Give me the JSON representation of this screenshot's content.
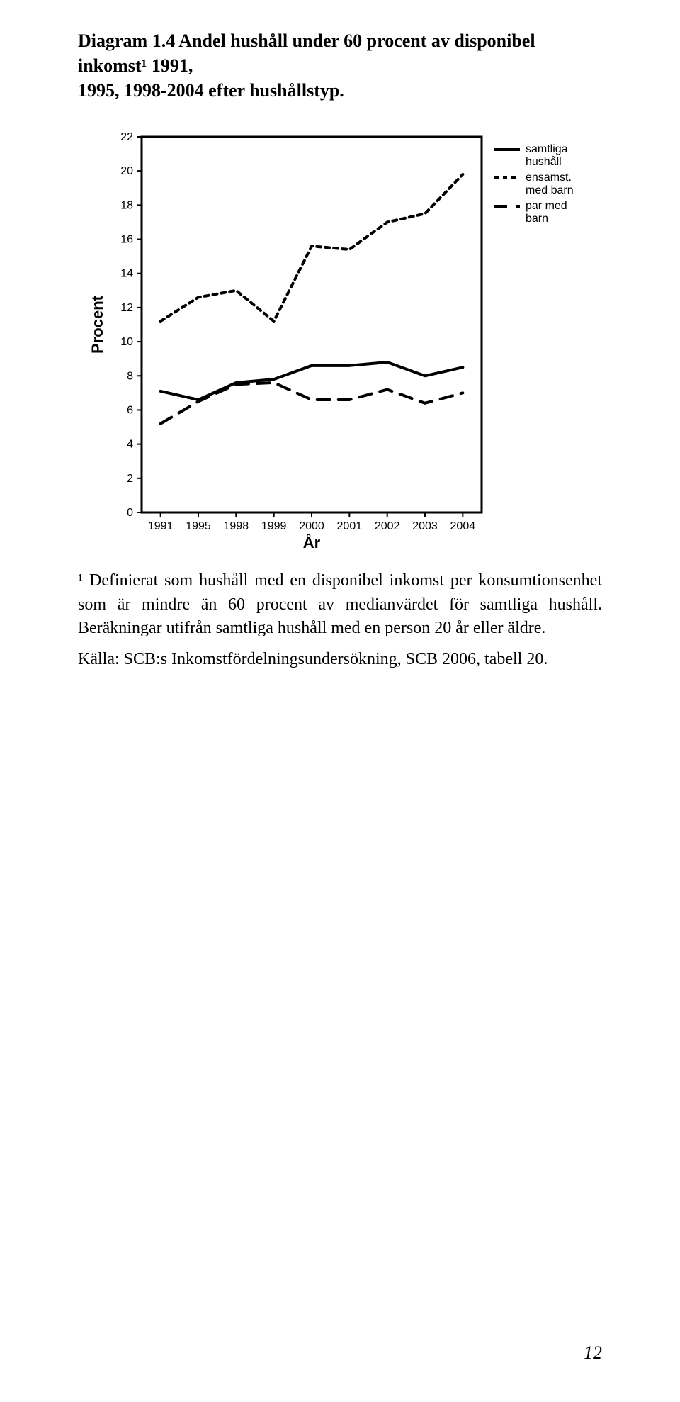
{
  "title_line1": "Diagram 1.4 Andel hushåll under 60 procent av disponibel inkomst¹ 1991,",
  "title_line2": "1995, 1998-2004 efter hushållstyp.",
  "footnote": "¹ Definierat som hushåll med en disponibel inkomst per konsumtionsenhet som är mindre än 60 procent av medianvärdet för samtliga hushåll. Beräkningar utifrån samtliga hushåll med en person 20 år eller äldre.",
  "source": "Källa: SCB:s Inkomstfördelningsundersökning, SCB 2006, tabell 20.",
  "page_number": "12",
  "chart": {
    "type": "line",
    "background_color": "#ffffff",
    "axis_color": "#000000",
    "axis_line_width": 2,
    "plot_frame_width": 3,
    "tick_font_size": 16,
    "tick_font_family": "Helvetica, Arial, sans-serif",
    "axis_label_font_size": 22,
    "axis_label_font_weight": "bold",
    "xlabel": "År",
    "ylabel": "Procent",
    "ylim": [
      0,
      22
    ],
    "ytick_step": 2,
    "categories": [
      "1991",
      "1995",
      "1998",
      "1999",
      "2000",
      "2001",
      "2002",
      "2003",
      "2004"
    ],
    "legend": {
      "position": "top-right-outside",
      "font_size": 16,
      "font_family": "Helvetica, Arial, sans-serif"
    },
    "series": [
      {
        "name": "samtliga hushåll",
        "label_lines": [
          "samtliga",
          "hushåll"
        ],
        "color": "#000000",
        "line_width": 4,
        "dash": "none",
        "values": [
          7.1,
          6.6,
          7.6,
          7.8,
          8.6,
          8.6,
          8.8,
          8.0,
          8.5
        ]
      },
      {
        "name": "ensamst. med barn",
        "label_lines": [
          "ensamst.",
          "med barn"
        ],
        "color": "#000000",
        "line_width": 4,
        "dash": "dotted",
        "values": [
          11.2,
          12.6,
          13.0,
          11.2,
          15.6,
          15.4,
          17.0,
          17.5,
          19.8
        ]
      },
      {
        "name": "par med barn",
        "label_lines": [
          "par med",
          "barn"
        ],
        "color": "#000000",
        "line_width": 4,
        "dash": "dashed",
        "values": [
          5.2,
          6.5,
          7.5,
          7.6,
          6.6,
          6.6,
          7.2,
          6.4,
          7.0
        ]
      }
    ]
  }
}
